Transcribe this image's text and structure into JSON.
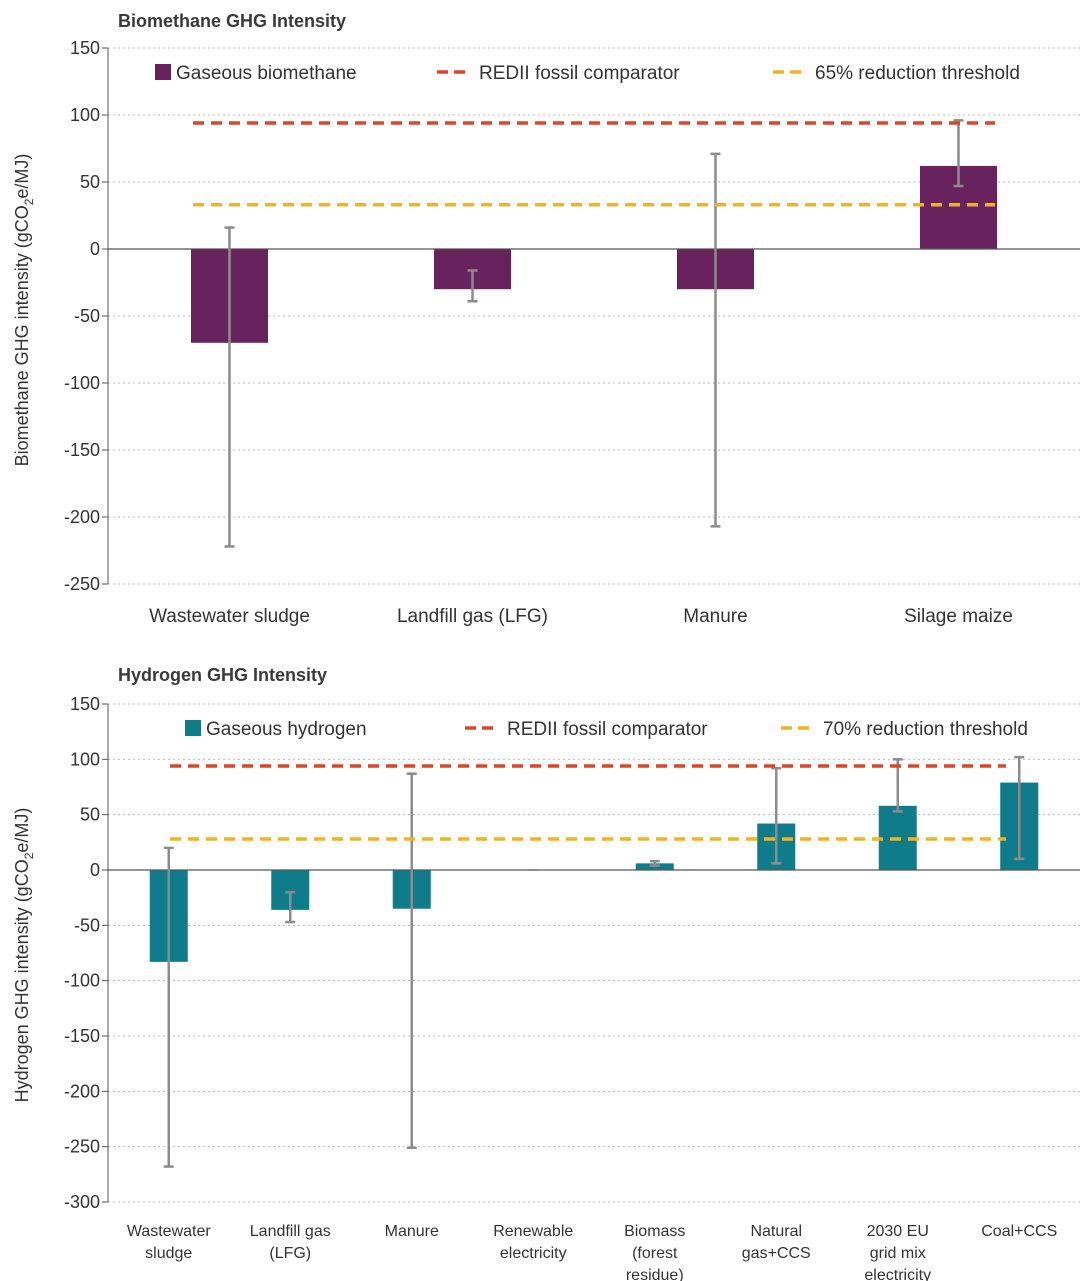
{
  "chart_data": [
    {
      "type": "bar",
      "title": "Biomethane GHG Intensity",
      "xlabel": "",
      "ylabel": "Biomethane GHG intensity (gCO₂e/MJ)",
      "ylim": [
        -250,
        150
      ],
      "yticks": [
        150,
        100,
        50,
        0,
        -50,
        -100,
        -150,
        -200,
        -250
      ],
      "grid": true,
      "legend": "top",
      "categories": [
        "Wastewater sludge",
        "Landfill gas (LFG)",
        "Manure",
        "Silage maize"
      ],
      "series": [
        {
          "name": "Gaseous biomethane",
          "color": "#68235e",
          "values": [
            -70,
            -30,
            -30,
            62
          ],
          "error_low": [
            -222,
            -39,
            -207,
            47
          ],
          "error_high": [
            16,
            -16,
            71,
            96
          ]
        }
      ],
      "reference_lines": [
        {
          "name": "REDII fossil comparator",
          "value": 94,
          "color": "#d9472b"
        },
        {
          "name": "65% reduction threshold",
          "value": 33,
          "color": "#f0b323"
        }
      ]
    },
    {
      "type": "bar",
      "title": "Hydrogen GHG Intensity",
      "xlabel": "",
      "ylabel": "Hydrogen GHG intensity (gCO₂e/MJ)",
      "ylim": [
        -300,
        150
      ],
      "yticks": [
        150,
        100,
        50,
        0,
        -50,
        -100,
        -150,
        -200,
        -250,
        -300
      ],
      "grid": true,
      "legend": "top",
      "categories": [
        [
          "Wastewater",
          "sludge"
        ],
        [
          "Landfill gas",
          "(LFG)"
        ],
        [
          "Manure"
        ],
        [
          "Renewable",
          "electricity"
        ],
        [
          "Biomass",
          "(forest",
          "residue)"
        ],
        [
          "Natural",
          "gas+CCS"
        ],
        [
          "2030 EU",
          "grid mix",
          "electricity"
        ],
        [
          "Coal+CCS"
        ]
      ],
      "series": [
        {
          "name": "Gaseous hydrogen",
          "color": "#0f7c8c",
          "values": [
            -83,
            -36,
            -35,
            0,
            6,
            42,
            58,
            79
          ],
          "error_low": [
            -268,
            -47,
            -251,
            null,
            4,
            6,
            53,
            10
          ],
          "error_high": [
            20,
            -20,
            87,
            null,
            8,
            92,
            100,
            102
          ]
        }
      ],
      "reference_lines": [
        {
          "name": "REDII fossil comparator",
          "value": 94,
          "color": "#d9472b"
        },
        {
          "name": "70% reduction threshold",
          "value": 28,
          "color": "#f0b323"
        }
      ]
    }
  ],
  "colors": {
    "error_bar": "#8c8c8c",
    "grid": "#b9b9b9",
    "axis": "#555555"
  }
}
